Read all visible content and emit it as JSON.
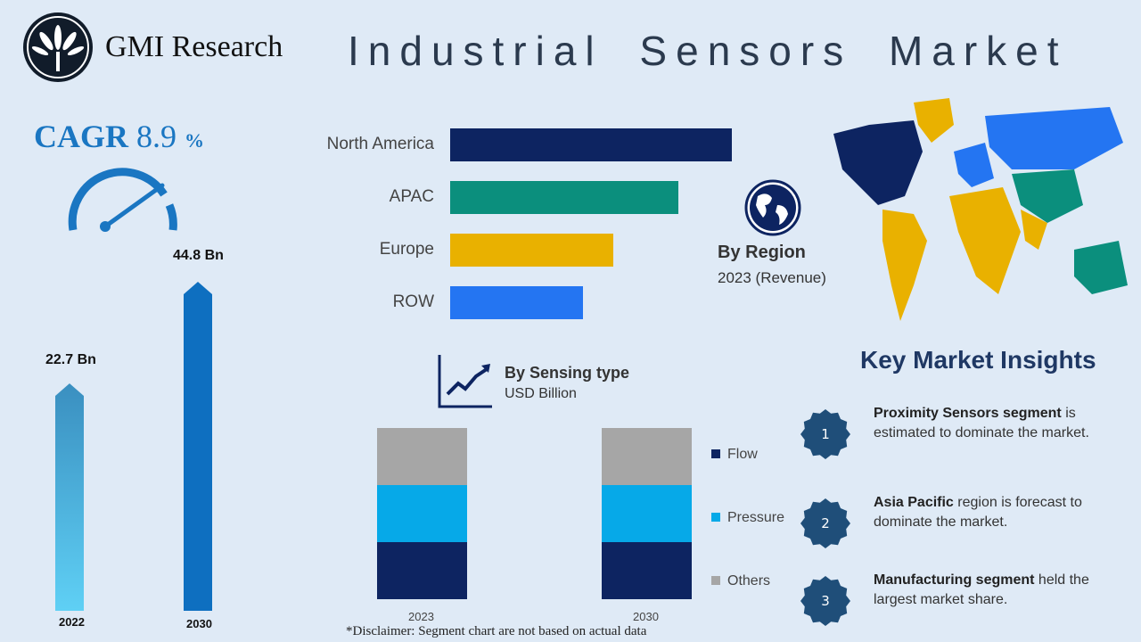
{
  "header": {
    "brand": "GMI Research",
    "title": "Industrial Sensors Market"
  },
  "cagr": {
    "label": "CAGR",
    "value": "8.9",
    "unit": "%"
  },
  "colors": {
    "brand_blue": "#1a76c2",
    "navy": "#0d2461",
    "teal": "#0b8f7d",
    "gold": "#e9b100",
    "blue": "#2475f2",
    "cyan": "#06a9e8",
    "gray": "#a6a6a6",
    "badge": "#1f4e79"
  },
  "market_size": [
    {
      "year": "2022",
      "value": "22.7 Bn"
    },
    {
      "year": "2030",
      "value": "44.8 Bn"
    }
  ],
  "region": {
    "title": "By Region",
    "subtitle": "2023 (Revenue)"
  },
  "sensing": {
    "title": "By Sensing type",
    "subtitle": "USD Billion"
  },
  "insights": {
    "title": "Key Market Insights",
    "items": [
      {
        "num": "1",
        "bold": "Proximity Sensors segment",
        "text": " is estimated to dominate the market."
      },
      {
        "num": "2",
        "bold": "Asia Pacific",
        "text": " region is forecast to dominate the market."
      },
      {
        "num": "3",
        "bold": "Manufacturing segment",
        "text": " held the largest market share."
      }
    ]
  },
  "disclaimer": "*Disclaimer:  Segment chart are not based on actual data",
  "chart_data": [
    {
      "type": "bar",
      "orientation": "horizontal",
      "title": "By Region",
      "categories": [
        "North America",
        "APAC",
        "Europe",
        "ROW"
      ],
      "values": [
        100,
        81,
        58,
        47
      ],
      "colors": [
        "#0d2461",
        "#0b8f7d",
        "#e9b100",
        "#2475f2"
      ]
    },
    {
      "type": "bar",
      "categories": [
        "2022",
        "2030"
      ],
      "values": [
        22.7,
        44.8
      ],
      "unit": "Bn"
    },
    {
      "type": "bar",
      "stacked": true,
      "title": "By Sensing type",
      "categories": [
        "2023",
        "2030"
      ],
      "legend": "right",
      "series": [
        {
          "name": "Flow",
          "values": [
            33.3,
            33.3
          ],
          "color": "#0d2461"
        },
        {
          "name": "Pressure",
          "values": [
            33.3,
            33.3
          ],
          "color": "#06a9e8"
        },
        {
          "name": "Others",
          "values": [
            33.3,
            33.3
          ],
          "color": "#a6a6a6"
        }
      ]
    }
  ]
}
